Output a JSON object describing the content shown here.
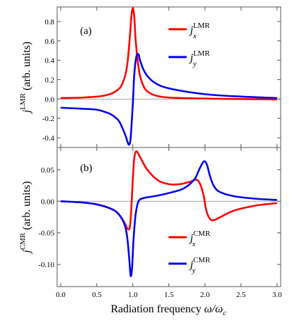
{
  "chart_data": [
    {
      "type": "line",
      "panel_label": "(a)",
      "ylabel_main": "j",
      "ylabel_sup": "LMR",
      "ylabel_rest": " (arb. units)",
      "ylim": [
        -0.5,
        0.95
      ],
      "yticks": [
        -0.4,
        -0.2,
        0.0,
        0.2,
        0.4,
        0.6,
        0.8
      ],
      "ytick_labels": [
        "-0.4",
        "-0.2",
        "0.0",
        "0.2",
        "0.4",
        "0.6",
        "0.8"
      ],
      "xlim": [
        -0.05,
        3.05
      ],
      "legend_position": "top-right",
      "series": [
        {
          "name": "j_x^LMR",
          "legend_main": "j",
          "legend_sup": "LMR",
          "legend_sub": "x",
          "color": "#ff0000",
          "x": [
            0.0,
            0.3,
            0.5,
            0.6,
            0.7,
            0.8,
            0.85,
            0.9,
            0.93,
            0.96,
            0.98,
            1.0,
            1.02,
            1.04,
            1.07,
            1.1,
            1.15,
            1.2,
            1.3,
            1.5,
            2.0,
            2.5,
            3.0
          ],
          "y": [
            0.01,
            0.015,
            0.025,
            0.035,
            0.055,
            0.1,
            0.15,
            0.26,
            0.4,
            0.65,
            0.85,
            0.94,
            0.85,
            0.6,
            0.38,
            0.24,
            0.13,
            0.08,
            0.04,
            0.015,
            0.005,
            0.0,
            -0.005
          ]
        },
        {
          "name": "j_y^LMR",
          "legend_main": "j",
          "legend_sup": "LMR",
          "legend_sub": "y",
          "color": "#0000ee",
          "x": [
            0.0,
            0.3,
            0.5,
            0.6,
            0.7,
            0.8,
            0.85,
            0.9,
            0.93,
            0.95,
            0.97,
            1.0,
            1.02,
            1.05,
            1.08,
            1.1,
            1.15,
            1.2,
            1.3,
            1.5,
            2.0,
            2.5,
            3.0
          ],
          "y": [
            -0.09,
            -0.1,
            -0.11,
            -0.13,
            -0.16,
            -0.22,
            -0.29,
            -0.38,
            -0.45,
            -0.47,
            -0.4,
            -0.05,
            0.25,
            0.44,
            0.46,
            0.4,
            0.3,
            0.24,
            0.17,
            0.11,
            0.05,
            0.025,
            0.01
          ]
        }
      ]
    },
    {
      "type": "line",
      "panel_label": "(b)",
      "ylabel_main": "j",
      "ylabel_sup": "CMR",
      "ylabel_rest": " (arb. units)",
      "ylim": [
        -0.135,
        0.085
      ],
      "yticks": [
        -0.1,
        -0.05,
        0.0,
        0.05
      ],
      "ytick_labels": [
        "-0.10",
        "-0.05",
        "0.00",
        "0.05"
      ],
      "xlim": [
        -0.05,
        3.05
      ],
      "xticks": [
        0.0,
        0.5,
        1.0,
        1.5,
        2.0,
        2.5,
        3.0
      ],
      "xtick_labels": [
        "0.0",
        "0.5",
        "1.0",
        "1.5",
        "2.0",
        "2.5",
        "3.0"
      ],
      "xlabel_main": "Radiation frequency ",
      "xlabel_math": "ω/ω",
      "xlabel_sub": "c",
      "legend_position": "bottom-right",
      "series": [
        {
          "name": "j_x^CMR",
          "legend_main": "j",
          "legend_sup": "CMR",
          "legend_sub": "x",
          "color": "#ff0000",
          "x": [
            0.0,
            0.3,
            0.5,
            0.7,
            0.8,
            0.88,
            0.93,
            0.96,
            0.98,
            1.0,
            1.02,
            1.05,
            1.1,
            1.2,
            1.35,
            1.5,
            1.65,
            1.8,
            1.88,
            1.93,
            1.98,
            2.02,
            2.07,
            2.12,
            2.2,
            2.4,
            2.7,
            3.0
          ],
          "y": [
            0.0,
            -0.002,
            -0.005,
            -0.012,
            -0.02,
            -0.033,
            -0.044,
            -0.04,
            -0.01,
            0.035,
            0.068,
            0.079,
            0.07,
            0.05,
            0.033,
            0.027,
            0.027,
            0.031,
            0.034,
            0.028,
            0.01,
            -0.015,
            -0.028,
            -0.03,
            -0.026,
            -0.015,
            -0.007,
            -0.003
          ]
        },
        {
          "name": "j_y^CMR",
          "legend_main": "j",
          "legend_sup": "CMR",
          "legend_sub": "y",
          "color": "#0000ee",
          "x": [
            0.0,
            0.3,
            0.5,
            0.7,
            0.8,
            0.88,
            0.92,
            0.95,
            0.97,
            0.99,
            1.01,
            1.04,
            1.08,
            1.15,
            1.3,
            1.5,
            1.7,
            1.85,
            1.92,
            1.97,
            2.0,
            2.03,
            2.07,
            2.12,
            2.2,
            2.4,
            2.7,
            3.0
          ],
          "y": [
            0.0,
            -0.002,
            -0.005,
            -0.012,
            -0.02,
            -0.035,
            -0.055,
            -0.09,
            -0.118,
            -0.105,
            -0.06,
            -0.02,
            0.0,
            0.005,
            0.008,
            0.013,
            0.02,
            0.034,
            0.05,
            0.061,
            0.063,
            0.057,
            0.04,
            0.025,
            0.015,
            0.008,
            0.004,
            0.002
          ]
        }
      ]
    }
  ]
}
